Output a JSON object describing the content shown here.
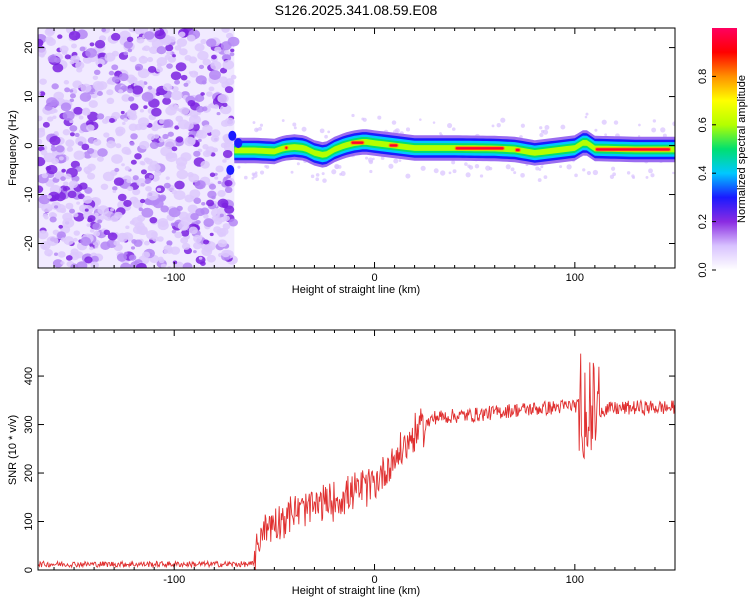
{
  "title": "S126.2025.341.08.59.E08",
  "chart_data": [
    {
      "type": "heatmap",
      "xlabel": "Height of straight line (km)",
      "ylabel": "Frequency (Hz)",
      "xlim": [
        -168,
        150
      ],
      "ylim": [
        -25,
        24
      ],
      "xticks": [
        -100,
        0,
        100
      ],
      "yticks": [
        -20,
        -10,
        0,
        10,
        20
      ],
      "noise_region_x": [
        -168,
        -70
      ],
      "signal_band_freq": [
        [
          -70,
          -1
        ],
        [
          -60,
          -1
        ],
        [
          -50,
          -1.2
        ],
        [
          -45,
          -0.5
        ],
        [
          -40,
          -0.3
        ],
        [
          -35,
          -0.5
        ],
        [
          -30,
          -1.5
        ],
        [
          -25,
          -2
        ],
        [
          -20,
          -0.8
        ],
        [
          -15,
          0
        ],
        [
          -10,
          0.5
        ],
        [
          -5,
          0.8
        ],
        [
          0,
          0.5
        ],
        [
          10,
          0
        ],
        [
          20,
          -0.5
        ],
        [
          30,
          -0.5
        ],
        [
          40,
          -0.5
        ],
        [
          60,
          -0.6
        ],
        [
          70,
          -0.8
        ],
        [
          80,
          -1.5
        ],
        [
          90,
          -1
        ],
        [
          100,
          -0.5
        ],
        [
          105,
          0.8
        ],
        [
          110,
          -0.6
        ],
        [
          130,
          -0.8
        ],
        [
          150,
          -0.8
        ]
      ],
      "colorbar": {
        "label": "Normalized spectral amplitude",
        "ticks": [
          "0.0",
          "0.2",
          "0.4",
          "0.6",
          "0.8"
        ],
        "range": [
          0,
          1
        ],
        "colors": [
          "#ffffff",
          "#d8c2ff",
          "#8a2be2",
          "#1a1aff",
          "#00c8ff",
          "#00e070",
          "#b4ff00",
          "#ffff00",
          "#ff9000",
          "#ff0000",
          "#ff0060"
        ]
      }
    },
    {
      "type": "line",
      "xlabel": "Height of straight line (km)",
      "ylabel": "SNR (10 * v/v)",
      "xlim": [
        -168,
        150
      ],
      "ylim": [
        0,
        495
      ],
      "xticks": [
        -100,
        0,
        100
      ],
      "yticks": [
        0,
        100,
        200,
        300,
        400
      ],
      "color": "#e03030",
      "trend": [
        [
          -168,
          12
        ],
        [
          -60,
          12
        ],
        [
          -57,
          80
        ],
        [
          -50,
          100
        ],
        [
          -40,
          120
        ],
        [
          -30,
          130
        ],
        [
          -20,
          145
        ],
        [
          -10,
          160
        ],
        [
          0,
          180
        ],
        [
          10,
          230
        ],
        [
          20,
          280
        ],
        [
          30,
          315
        ],
        [
          50,
          320
        ],
        [
          70,
          330
        ],
        [
          90,
          335
        ],
        [
          100,
          340
        ],
        [
          110,
          330
        ],
        [
          130,
          335
        ],
        [
          150,
          335
        ]
      ]
    }
  ]
}
